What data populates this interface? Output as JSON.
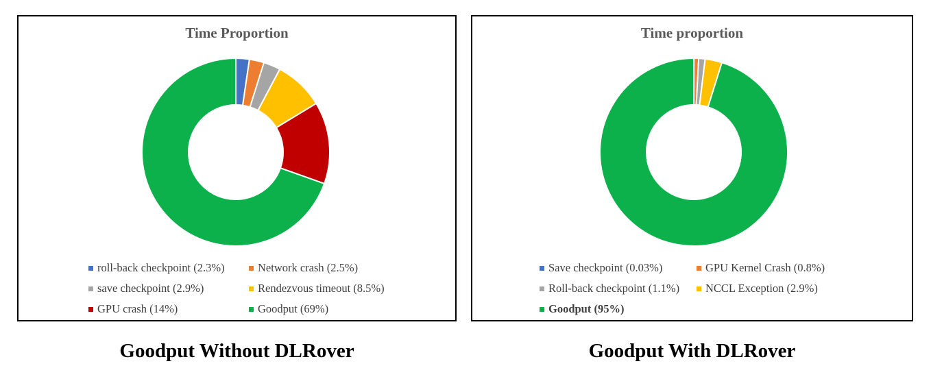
{
  "charts": [
    {
      "caption": "Goodput Without DLRover",
      "chart_data": {
        "type": "pie",
        "variant": "donut",
        "title": "Time Proportion",
        "legend_position": "bottom",
        "series": [
          {
            "name": "roll-back checkpoint",
            "label": "roll-back checkpoint (2.3%)",
            "value": 2.3,
            "color": "#4472C4"
          },
          {
            "name": "Network crash",
            "label": "Network crash (2.5%)",
            "value": 2.5,
            "color": "#ED7D31"
          },
          {
            "name": "save checkpoint",
            "label": "save checkpoint (2.9%)",
            "value": 2.9,
            "color": "#A5A5A5"
          },
          {
            "name": "Rendezvous timeout",
            "label": "Rendezvous timeout (8.5%)",
            "value": 8.5,
            "color": "#FFC000"
          },
          {
            "name": "GPU crash",
            "label": "GPU crash (14%)",
            "value": 14,
            "color": "#C00000"
          },
          {
            "name": "Goodput",
            "label": "Goodput (69%)",
            "value": 69,
            "color": "#0DB14B"
          }
        ]
      }
    },
    {
      "caption": "Goodput With DLRover",
      "chart_data": {
        "type": "pie",
        "variant": "donut",
        "title": "Time proportion",
        "legend_position": "bottom",
        "series": [
          {
            "name": "Save checkpoint",
            "label": "Save checkpoint (0.03%)",
            "value": 0.03,
            "color": "#4472C4"
          },
          {
            "name": "GPU Kernel Crash",
            "label": "GPU Kernel Crash (0.8%)",
            "value": 0.8,
            "color": "#ED7D31"
          },
          {
            "name": "Roll-back checkpoint",
            "label": "Roll-back checkpoint (1.1%)",
            "value": 1.1,
            "color": "#A5A5A5"
          },
          {
            "name": "NCCL Exception",
            "label": "NCCL Exception (2.9%)",
            "value": 2.9,
            "color": "#FFC000"
          },
          {
            "name": "Goodput",
            "label": "Goodput (95%)",
            "value": 95,
            "color": "#0DB14B",
            "bold": true
          }
        ]
      }
    }
  ]
}
